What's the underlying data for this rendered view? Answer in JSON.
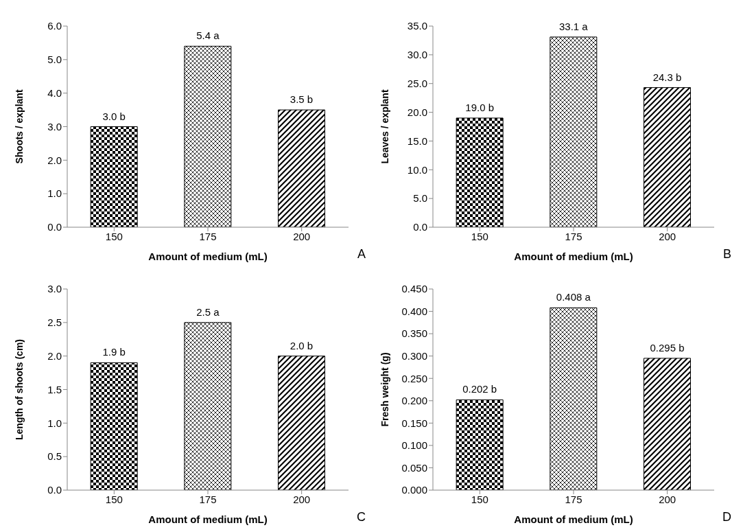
{
  "chart_data": [
    {
      "type": "bar",
      "ylabel": "Shoots / explant",
      "xlabel": "Amount of medium (mL)",
      "categories": [
        "150",
        "175",
        "200"
      ],
      "values": [
        3.0,
        5.4,
        3.5
      ],
      "value_labels": [
        "3.0 b",
        "5.4 a",
        "3.5 b"
      ],
      "colors": [
        "#000000",
        "#000000",
        "#000000"
      ],
      "ylim": [
        0,
        6
      ],
      "yticks": [
        {
          "value": 0,
          "label": "0.0"
        },
        {
          "value": 1,
          "label": "1.0"
        },
        {
          "value": 2,
          "label": "2.0"
        },
        {
          "value": 3,
          "label": "3.0"
        },
        {
          "value": 4,
          "label": "4.0"
        },
        {
          "value": 5,
          "label": "5.0"
        },
        {
          "value": 6,
          "label": "6.0"
        }
      ],
      "grid": false,
      "legend": false,
      "annotations": [
        "A"
      ]
    },
    {
      "type": "bar",
      "ylabel": "Leaves / explant",
      "xlabel": "Amount of medium (mL)",
      "categories": [
        "150",
        "175",
        "200"
      ],
      "values": [
        19.0,
        33.1,
        24.3
      ],
      "value_labels": [
        "19.0 b",
        "33.1 a",
        "24.3 b"
      ],
      "colors": [
        "#000000",
        "#000000",
        "#000000"
      ],
      "ylim": [
        0,
        35
      ],
      "yticks": [
        {
          "value": 0,
          "label": "0.0"
        },
        {
          "value": 5,
          "label": "5.0"
        },
        {
          "value": 10,
          "label": "10.0"
        },
        {
          "value": 15,
          "label": "15.0"
        },
        {
          "value": 20,
          "label": "20.0"
        },
        {
          "value": 25,
          "label": "25.0"
        },
        {
          "value": 30,
          "label": "30.0"
        },
        {
          "value": 35,
          "label": "35.0"
        }
      ],
      "grid": false,
      "legend": false,
      "annotations": [
        "B"
      ]
    },
    {
      "type": "bar",
      "ylabel": "Length of shoots (cm)",
      "xlabel": "Amount of medium (mL)",
      "categories": [
        "150",
        "175",
        "200"
      ],
      "values": [
        1.9,
        2.5,
        2.0
      ],
      "value_labels": [
        "1.9 b",
        "2.5 a",
        "2.0 b"
      ],
      "colors": [
        "#000000",
        "#000000",
        "#000000"
      ],
      "ylim": [
        0,
        3
      ],
      "yticks": [
        {
          "value": 0,
          "label": "0.0"
        },
        {
          "value": 0.5,
          "label": "0.5"
        },
        {
          "value": 1,
          "label": "1.0"
        },
        {
          "value": 1.5,
          "label": "1.5"
        },
        {
          "value": 2,
          "label": "2.0"
        },
        {
          "value": 2.5,
          "label": "2.5"
        },
        {
          "value": 3,
          "label": "3.0"
        }
      ],
      "grid": false,
      "legend": false,
      "annotations": [
        "C"
      ]
    },
    {
      "type": "bar",
      "ylabel": "Fresh weight (g)",
      "xlabel": "Amount of medium (mL)",
      "categories": [
        "150",
        "175",
        "200"
      ],
      "values": [
        0.202,
        0.408,
        0.295
      ],
      "value_labels": [
        "0.202 b",
        "0.408 a",
        "0.295 b"
      ],
      "colors": [
        "#000000",
        "#000000",
        "#000000"
      ],
      "ylim": [
        0,
        0.45
      ],
      "yticks": [
        {
          "value": 0,
          "label": "0.000"
        },
        {
          "value": 0.05,
          "label": "0.050"
        },
        {
          "value": 0.1,
          "label": "0.100"
        },
        {
          "value": 0.15,
          "label": "0.150"
        },
        {
          "value": 0.2,
          "label": "0.200"
        },
        {
          "value": 0.25,
          "label": "0.250"
        },
        {
          "value": 0.3,
          "label": "0.300"
        },
        {
          "value": 0.35,
          "label": "0.350"
        },
        {
          "value": 0.4,
          "label": "0.400"
        },
        {
          "value": 0.45,
          "label": "0.450"
        }
      ],
      "grid": false,
      "legend": false,
      "annotations": [
        "D"
      ]
    }
  ]
}
